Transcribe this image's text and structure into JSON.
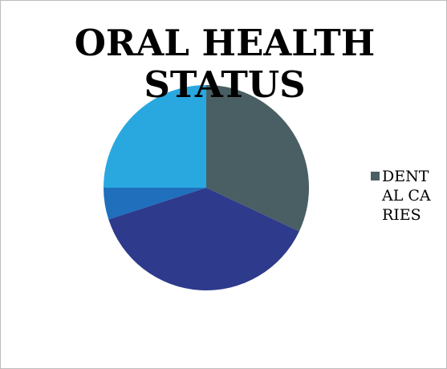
{
  "chart_data": {
    "type": "pie",
    "title": "ORAL HEALTH STATUS",
    "categories": [
      "DENTAL CARIES",
      "",
      "",
      ""
    ],
    "values": [
      32,
      38,
      5,
      25
    ],
    "colors": [
      "#4a5f63",
      "#2e3a8c",
      "#1f6fbc",
      "#29a8e0"
    ],
    "legend": [
      {
        "label": "DENTAL CARIES",
        "color": "#4a5f63"
      }
    ],
    "legend_position": "right",
    "start_angle_deg": 0,
    "direction": "clockwise"
  }
}
